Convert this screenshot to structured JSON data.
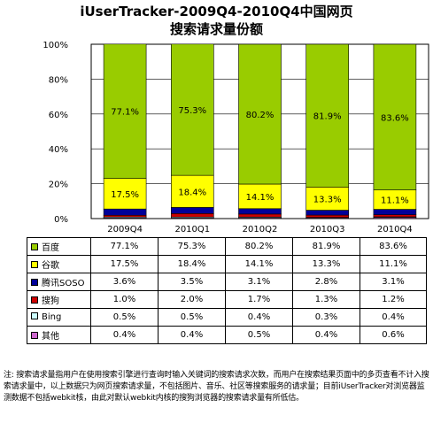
{
  "title_line1": "iUserTracker-2009Q4-2010Q4中国网页",
  "title_line2": "搜索请求量份额",
  "note": "注: 搜索请求量指用户在使用搜索引擎进行查询时输入关键词的搜索请求次数，而用户在搜索结果页面中的多页查看不计入搜索请求量中，以上数据只为网页搜索请求量，不包括图片、音乐、社区等搜索服务的请求量；目前iUserTracker对浏览器监测数据不包括webkit核，由此对默认webkit内核的搜狗浏览器的搜索请求量有所低估。",
  "chart_data": {
    "type": "bar",
    "stacked": true,
    "categories": [
      "2009Q4",
      "2010Q1",
      "2010Q2",
      "2010Q3",
      "2010Q4"
    ],
    "ylim": [
      0,
      100
    ],
    "yticks": [
      "0%",
      "20%",
      "40%",
      "60%",
      "80%",
      "100%"
    ],
    "grid": true,
    "legend": "table",
    "series": [
      {
        "name": "百度",
        "color": "#99cc00",
        "values": [
          77.1,
          75.3,
          80.2,
          81.9,
          83.6
        ],
        "labels": [
          "77.1%",
          "75.3%",
          "80.2%",
          "81.9%",
          "83.6%"
        ],
        "show_labels": true
      },
      {
        "name": "谷歌",
        "color": "#ffff00",
        "values": [
          17.5,
          18.4,
          14.1,
          13.3,
          11.1
        ],
        "labels": [
          "17.5%",
          "18.4%",
          "14.1%",
          "13.3%",
          "11.1%"
        ],
        "show_labels": true
      },
      {
        "name": "腾讯SOSO",
        "color": "#000099",
        "values": [
          3.6,
          3.5,
          3.1,
          2.8,
          3.1
        ],
        "labels": [
          "3.6%",
          "3.5%",
          "3.1%",
          "2.8%",
          "3.1%"
        ],
        "show_labels": false
      },
      {
        "name": "搜狗",
        "color": "#cc0000",
        "values": [
          1.0,
          2.0,
          1.7,
          1.3,
          1.2
        ],
        "labels": [
          "1.0%",
          "2.0%",
          "1.7%",
          "1.3%",
          "1.2%"
        ],
        "show_labels": false
      },
      {
        "name": "Bing",
        "color": "#ccffff",
        "values": [
          0.5,
          0.5,
          0.4,
          0.3,
          0.4
        ],
        "labels": [
          "0.5%",
          "0.5%",
          "0.4%",
          "0.3%",
          "0.4%"
        ],
        "show_labels": false
      },
      {
        "name": "其他",
        "color": "#cc66cc",
        "values": [
          0.4,
          0.4,
          0.5,
          0.4,
          0.6
        ],
        "labels": [
          "0.4%",
          "0.4%",
          "0.5%",
          "0.4%",
          "0.6%"
        ],
        "show_labels": false
      }
    ]
  }
}
